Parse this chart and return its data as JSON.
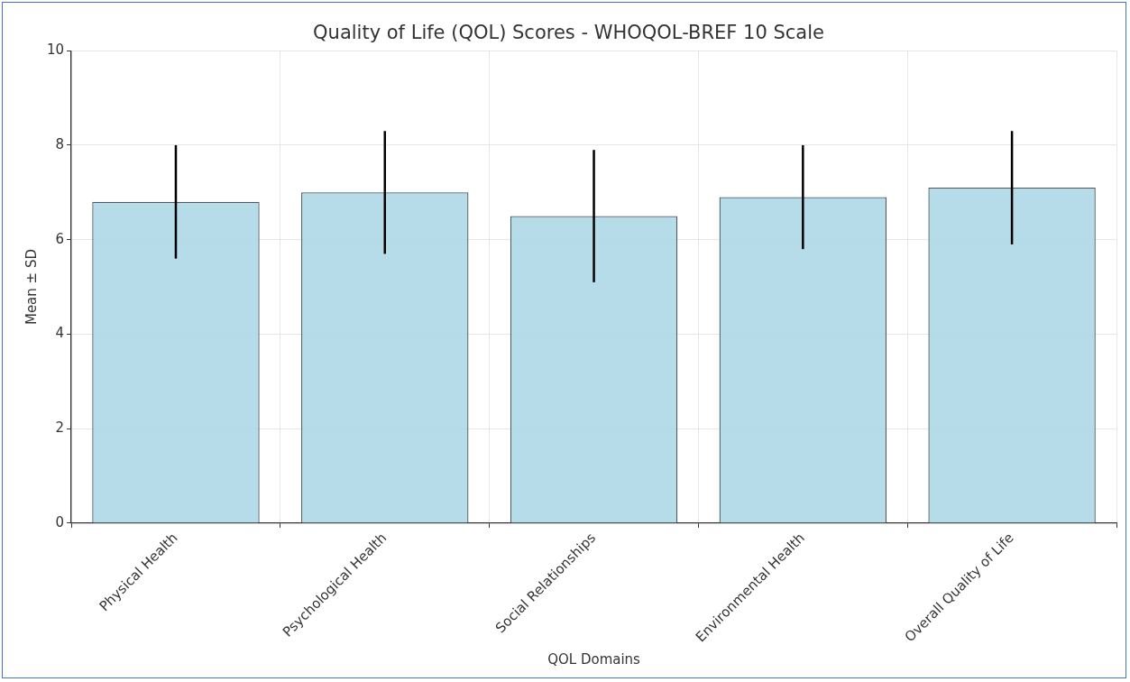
{
  "chart_data": {
    "type": "bar",
    "title": "Quality of Life (QOL) Scores - WHOQOL-BREF 10 Scale",
    "xlabel": "QOL Domains",
    "ylabel": "Mean ± SD",
    "categories": [
      "Physical Health",
      "Psychological Health",
      "Social Relationships",
      "Environmental Health",
      "Overall Quality of Life"
    ],
    "values": [
      6.8,
      7.0,
      6.5,
      6.9,
      7.1
    ],
    "errors": [
      1.2,
      1.3,
      1.4,
      1.1,
      1.2
    ],
    "color": "#add8e6",
    "ylim": [
      0,
      10
    ],
    "yticks": [
      0,
      2,
      4,
      6,
      8,
      10
    ],
    "grid": true
  }
}
